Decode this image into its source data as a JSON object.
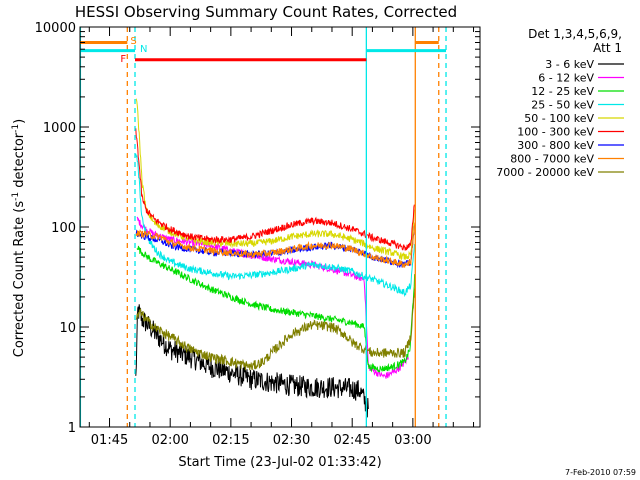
{
  "chart_data": {
    "type": "line",
    "title": "HESSI Observing Summary Count Rates, Corrected",
    "xlabel": "Start Time (23-Jul-02 01:33:42)",
    "ylabel": "Corrected Count Rate (s⁻¹ detector⁻¹)",
    "ylabel_parts": {
      "a": "Corrected Count Rate (s",
      "b": "-1",
      "c": " detector",
      "d": "-1",
      "e": ")"
    },
    "y_scale": "log",
    "ylim": [
      1,
      10000
    ],
    "yticks": [
      1,
      10,
      100,
      1000,
      10000
    ],
    "ytick_labels": [
      "1",
      "10",
      "100",
      "1000",
      "10000"
    ],
    "xlim_min": [
      97.7,
      196.6
    ],
    "xtick_labels": [
      "01:45",
      "02:00",
      "02:15",
      "02:30",
      "02:45",
      "03:00"
    ],
    "xtick_min": [
      105,
      120,
      135,
      150,
      165,
      180
    ],
    "footer": "7-Feb-2010 07:59",
    "legend": {
      "header1": "Det 1,3,4,5,6,9,",
      "header2": "Att 1",
      "position": "right",
      "entries": [
        {
          "label": "3 - 6 keV",
          "color": "#000000"
        },
        {
          "label": "6 - 12 keV",
          "color": "#ff00ff"
        },
        {
          "label": "12 - 25 keV",
          "color": "#00dd00"
        },
        {
          "label": "25 - 50 keV",
          "color": "#00e8e8"
        },
        {
          "label": "50 - 100 keV",
          "color": "#d8d800"
        },
        {
          "label": "100 - 300 keV",
          "color": "#ff0000"
        },
        {
          "label": "300 - 800 keV",
          "color": "#0000ff"
        },
        {
          "label": "800 - 7000 keV",
          "color": "#ff8000"
        },
        {
          "label": "7000 - 20000 keV",
          "color": "#808000"
        }
      ]
    },
    "flags": [
      {
        "label": "S",
        "color": "#ff8000"
      },
      {
        "label": "N",
        "color": "#00e8e8"
      },
      {
        "label": "F",
        "color": "#ff0000"
      }
    ],
    "series": [
      {
        "color": "#000000",
        "x": [
          111.5,
          112,
          113,
          115,
          117,
          120,
          125,
          130,
          135,
          140,
          145,
          150,
          155,
          160,
          165,
          167,
          169
        ],
        "y": [
          3,
          15,
          12,
          10,
          8,
          6,
          5,
          4,
          3.5,
          3,
          2.8,
          2.6,
          2.5,
          2.5,
          2.4,
          2.3,
          1.5
        ]
      },
      {
        "color": "#ff00ff",
        "x": [
          111.8,
          112.5,
          114,
          116,
          120,
          125,
          130,
          135,
          140,
          145,
          150,
          155,
          160,
          165,
          168,
          169,
          171,
          173,
          175,
          177,
          179
        ],
        "y": [
          120,
          110,
          95,
          85,
          75,
          70,
          65,
          58,
          52,
          48,
          45,
          42,
          38,
          33,
          30,
          4,
          3.5,
          3.2,
          3.5,
          4,
          5
        ]
      },
      {
        "color": "#00dd00",
        "x": [
          111.8,
          112.5,
          115,
          120,
          125,
          130,
          135,
          140,
          145,
          150,
          155,
          160,
          165,
          168,
          169,
          172,
          175,
          178,
          179.3,
          180.5
        ],
        "y": [
          65,
          58,
          48,
          38,
          30,
          24,
          20,
          17,
          15,
          14,
          13,
          12,
          11,
          10,
          4,
          3.8,
          4,
          4.5,
          6,
          35
        ]
      },
      {
        "color": "#00e8e8",
        "x": [
          111.5,
          112,
          113,
          115,
          117,
          120,
          125,
          130,
          135,
          140,
          145,
          150,
          155,
          160,
          165,
          168,
          170,
          175,
          178,
          179.5,
          180.5
        ],
        "y": [
          500,
          450,
          120,
          70,
          55,
          45,
          38,
          35,
          32,
          33,
          35,
          38,
          42,
          40,
          36,
          32,
          30,
          25,
          22,
          26,
          75
        ]
      },
      {
        "color": "#d8d800",
        "x": [
          111.5,
          112,
          113,
          114,
          116,
          120,
          125,
          130,
          135,
          140,
          145,
          150,
          155,
          160,
          165,
          168,
          170,
          175,
          178,
          179.5,
          180.5
        ],
        "y": [
          2000,
          1400,
          300,
          150,
          110,
          90,
          75,
          70,
          68,
          68,
          72,
          80,
          85,
          85,
          75,
          68,
          62,
          55,
          50,
          52,
          170
        ]
      },
      {
        "color": "#ff0000",
        "x": [
          111.5,
          112,
          113,
          114,
          116,
          120,
          125,
          130,
          135,
          140,
          145,
          150,
          155,
          160,
          165,
          168,
          170,
          175,
          178,
          179.5,
          180.5
        ],
        "y": [
          900,
          600,
          200,
          150,
          120,
          95,
          80,
          75,
          75,
          80,
          92,
          105,
          115,
          110,
          95,
          85,
          78,
          68,
          62,
          65,
          200
        ]
      },
      {
        "color": "#0000ff",
        "x": [
          111.6,
          112,
          114,
          118,
          120,
          125,
          130,
          135,
          140,
          145,
          150,
          155,
          160,
          165,
          168,
          170,
          175,
          178,
          179.5,
          180.5
        ],
        "y": [
          90,
          85,
          80,
          72,
          65,
          60,
          56,
          55,
          53,
          54,
          58,
          63,
          65,
          60,
          55,
          50,
          45,
          42,
          44,
          110
        ]
      },
      {
        "color": "#ff8000",
        "x": [
          111.6,
          112,
          114,
          118,
          120,
          125,
          130,
          135,
          140,
          145,
          150,
          155,
          160,
          165,
          168,
          170,
          175,
          178,
          179.5,
          180.5
        ],
        "y": [
          88,
          86,
          85,
          78,
          70,
          62,
          58,
          55,
          53,
          55,
          60,
          65,
          66,
          60,
          54,
          50,
          45,
          42,
          45,
          115
        ]
      },
      {
        "color": "#808000",
        "x": [
          111.6,
          112.5,
          114,
          116,
          120,
          125,
          130,
          135,
          140,
          143,
          146,
          150,
          155,
          160,
          163,
          165,
          168,
          170,
          173,
          175,
          178,
          179.5,
          180.5
        ],
        "y": [
          12,
          14,
          12,
          10,
          8,
          6,
          5,
          4.5,
          4,
          4.5,
          6,
          8.5,
          10.5,
          10,
          8.5,
          7,
          6,
          5.5,
          5.5,
          5.5,
          5.5,
          8,
          25
        ]
      }
    ],
    "vlines": [
      {
        "x": 97.8,
        "color": "#00e8e8",
        "dash": false
      },
      {
        "x": 109.4,
        "color": "#ff8000",
        "dash": true
      },
      {
        "x": 111.3,
        "color": "#00e8e8",
        "dash": true
      },
      {
        "x": 168.5,
        "color": "#00e8e8",
        "dash": false
      },
      {
        "x": 180.6,
        "color": "#ff8000",
        "dash": false
      },
      {
        "x": 186.4,
        "color": "#ff8000",
        "dash": true
      },
      {
        "x": 188.2,
        "color": "#00e8e8",
        "dash": true
      }
    ],
    "hbars": [
      {
        "x0": 97.8,
        "x1": 109.4,
        "y": 7000,
        "color": "#ff8000"
      },
      {
        "x0": 97.8,
        "x1": 111.3,
        "y": 5800,
        "color": "#00e8e8"
      },
      {
        "x0": 111.3,
        "x1": 168.5,
        "y": 4700,
        "color": "#ff0000"
      },
      {
        "x0": 168.5,
        "x1": 188.2,
        "y": 5800,
        "color": "#00e8e8"
      },
      {
        "x0": 180.6,
        "x1": 186.4,
        "y": 7000,
        "color": "#ff8000"
      }
    ]
  }
}
